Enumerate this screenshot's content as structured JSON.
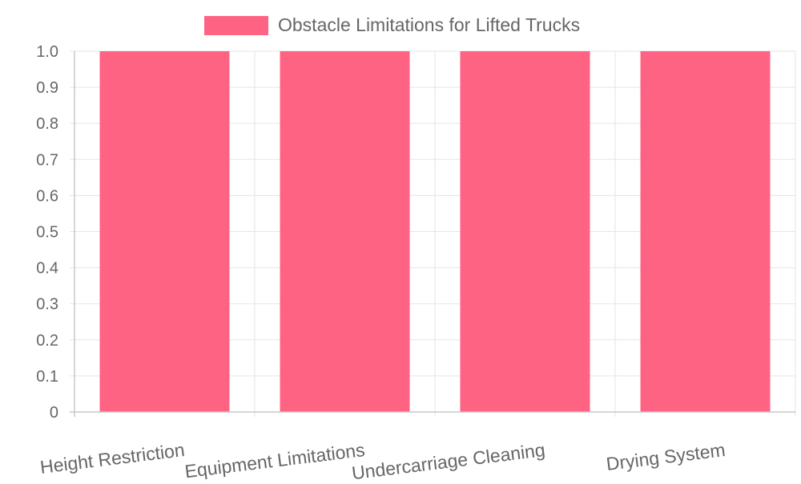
{
  "chart_data": {
    "type": "bar",
    "categories": [
      "Height Restriction",
      "Equipment Limitations",
      "Undercarriage Cleaning",
      "Drying System"
    ],
    "series": [
      {
        "name": "Obstacle Limitations for Lifted Trucks",
        "values": [
          1,
          1,
          1,
          1
        ],
        "color": "#ff6384"
      }
    ],
    "yticks": [
      "0",
      "0.1",
      "0.2",
      "0.3",
      "0.4",
      "0.5",
      "0.6",
      "0.7",
      "0.8",
      "0.9",
      "1.0"
    ],
    "ylim": [
      0,
      1
    ],
    "grid": true,
    "legend_position": "top-center",
    "colors": {
      "grid": "#e5e5e5",
      "axis": "#c8c8c8",
      "tick_text": "#666666"
    }
  }
}
